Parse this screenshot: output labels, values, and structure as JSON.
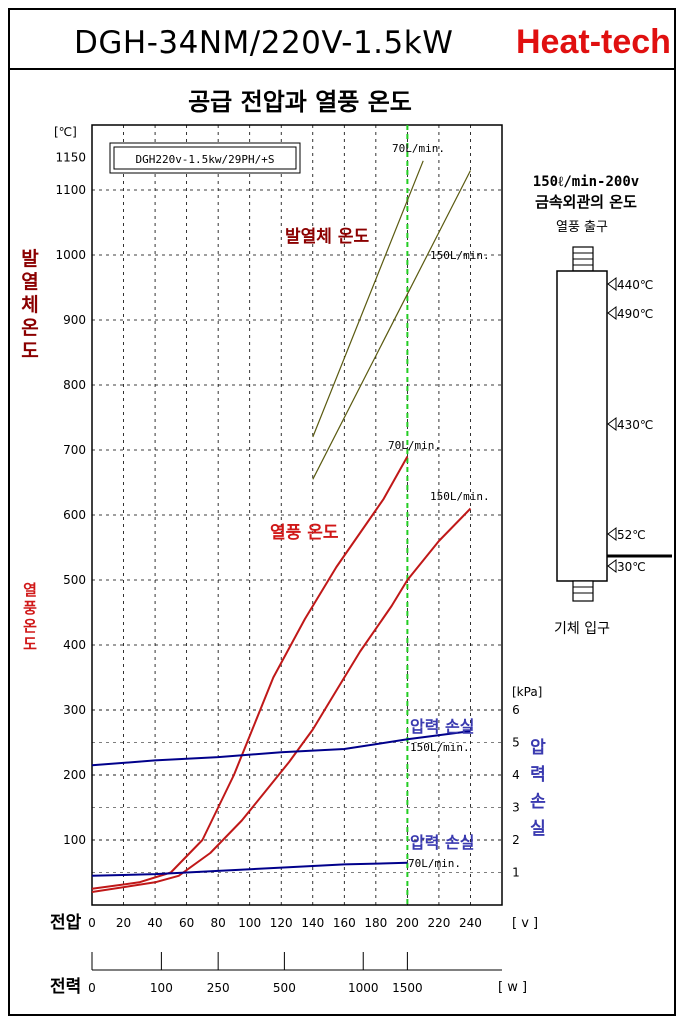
{
  "header": {
    "model": "DGH-34NM/220V-1.5kW",
    "brand": "Heat-tech"
  },
  "chart_title": "공급 전압과 열풍 온도",
  "spec_box": "DGH220v-1.5kw/29PH/+S",
  "colors": {
    "element_temp": "#5a5a10",
    "air_temp": "#c01818",
    "pressure": "#00008b",
    "ref_line": "#22cc22",
    "element_label": "#8b0000",
    "air_label": "#d01818",
    "pressure_label": "#3a3ab0",
    "brand": "#e01010"
  },
  "chart_data": {
    "type": "line",
    "x": {
      "label": "전압",
      "unit": "[ v ]",
      "ticks": [
        0,
        20,
        40,
        60,
        80,
        100,
        120,
        140,
        160,
        180,
        200,
        220,
        240
      ],
      "range": [
        0,
        260
      ]
    },
    "x_power": {
      "label": "전력",
      "unit": "[ w ]",
      "ticks": [
        {
          "label": "0",
          "v": 0
        },
        {
          "label": "100",
          "v": 44
        },
        {
          "label": "250",
          "v": 80
        },
        {
          "label": "500",
          "v": 122
        },
        {
          "label": "1000",
          "v": 172
        },
        {
          "label": "1500",
          "v": 200
        }
      ]
    },
    "y_left": {
      "unit": "[℃]",
      "ticks": [
        100,
        200,
        300,
        400,
        500,
        600,
        700,
        800,
        900,
        1000,
        1100,
        1150
      ],
      "range": [
        0,
        1200
      ]
    },
    "y_right": {
      "unit": "[kPa]",
      "ticks": [
        1,
        2,
        3,
        4,
        5,
        6
      ],
      "range": [
        0,
        6
      ]
    },
    "vertical_ref_voltage": 200,
    "series": [
      {
        "name": "70L/min.",
        "group": "element",
        "axis": "left",
        "points": [
          [
            140,
            720
          ],
          [
            210,
            1145
          ]
        ]
      },
      {
        "name": "150L/min.",
        "group": "element",
        "axis": "left",
        "points": [
          [
            140,
            655
          ],
          [
            240,
            1130
          ]
        ]
      },
      {
        "name": "70L/min.",
        "group": "air",
        "axis": "left",
        "points": [
          [
            0,
            25
          ],
          [
            30,
            35
          ],
          [
            50,
            50
          ],
          [
            70,
            100
          ],
          [
            90,
            200
          ],
          [
            100,
            260
          ],
          [
            115,
            350
          ],
          [
            135,
            440
          ],
          [
            155,
            520
          ],
          [
            175,
            590
          ],
          [
            185,
            625
          ],
          [
            200,
            690
          ]
        ]
      },
      {
        "name": "150L/min.",
        "group": "air",
        "axis": "left",
        "points": [
          [
            0,
            20
          ],
          [
            40,
            35
          ],
          [
            55,
            45
          ],
          [
            75,
            80
          ],
          [
            95,
            130
          ],
          [
            110,
            175
          ],
          [
            125,
            220
          ],
          [
            140,
            270
          ],
          [
            155,
            330
          ],
          [
            170,
            390
          ],
          [
            190,
            460
          ],
          [
            200,
            500
          ],
          [
            220,
            560
          ],
          [
            240,
            610
          ]
        ]
      },
      {
        "name": "150L/min.",
        "group": "pressure",
        "axis": "right",
        "points": [
          [
            0,
            4.3
          ],
          [
            40,
            4.45
          ],
          [
            80,
            4.55
          ],
          [
            120,
            4.7
          ],
          [
            160,
            4.8
          ],
          [
            200,
            5.1
          ],
          [
            240,
            5.35
          ]
        ]
      },
      {
        "name": "70L/min.",
        "group": "pressure",
        "axis": "right",
        "points": [
          [
            0,
            0.9
          ],
          [
            40,
            0.95
          ],
          [
            80,
            1.05
          ],
          [
            120,
            1.15
          ],
          [
            160,
            1.25
          ],
          [
            200,
            1.3
          ]
        ]
      }
    ],
    "labels": {
      "element_series": "발열체 온도",
      "air_series": "열풍 온도",
      "pressure_upper": "압력 손실",
      "pressure_lower": "압력 손실",
      "left_upper_axis": "발열체온도",
      "left_lower_axis": "열풍온도",
      "right_axis": "압력손실",
      "el_70": "70L/min.",
      "el_150": "150L/min.",
      "air_70": "70L/min.",
      "air_150": "150L/min.",
      "pr_150": "150L/min.",
      "pr_70": "70L/min."
    }
  },
  "side_panel": {
    "title_line1": "150ℓ/min-200v",
    "title_line2": "금속외관의 온도",
    "outlet": "열풍 출구",
    "inlet": "기체 입구",
    "temps": [
      "440℃",
      "490℃",
      "430℃",
      "52℃",
      "30℃"
    ]
  }
}
